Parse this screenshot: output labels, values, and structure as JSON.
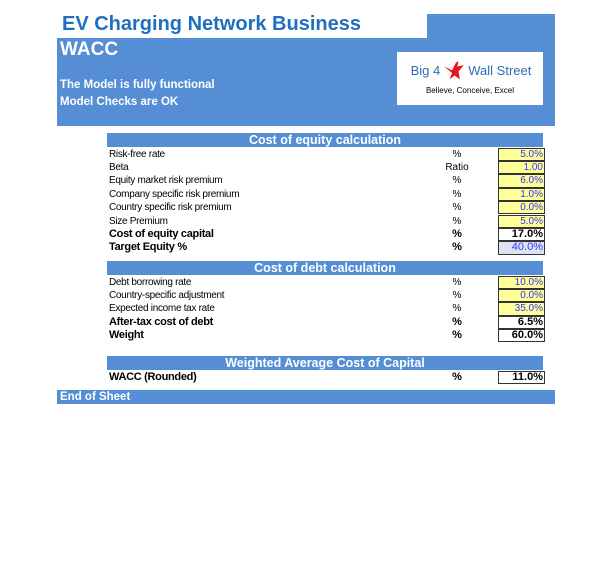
{
  "header": {
    "title": "EV Charging Network Business",
    "sheet": "WACC",
    "status_lines": [
      "The Model is fully functional",
      "Model Checks are OK"
    ],
    "logo": {
      "left": "Big 4",
      "right": "Wall Street",
      "tagline": "Believe, Conceive, Excel"
    }
  },
  "equity": {
    "title": "Cost of equity calculation",
    "rows": [
      {
        "label": "Risk-free rate",
        "unit": "%",
        "value": "5.0%"
      },
      {
        "label": "Beta",
        "unit": "Ratio",
        "value": "1.00"
      },
      {
        "label": "Equity market risk premium",
        "unit": "%",
        "value": "6.0%"
      },
      {
        "label": "Company specific risk premium",
        "unit": "%",
        "value": "1.0%"
      },
      {
        "label": "Country specific risk premium",
        "unit": "%",
        "value": "0.0%"
      },
      {
        "label": "Size Premium",
        "unit": "%",
        "value": "5.0%"
      },
      {
        "label": "Cost of equity capital",
        "unit": "%",
        "value": "17.0%"
      },
      {
        "label": "Target Equity %",
        "unit": "%",
        "value": "40.0%"
      }
    ]
  },
  "debt": {
    "title": "Cost of debt calculation",
    "rows": [
      {
        "label": "Debt borrowing rate",
        "unit": "%",
        "value": "10.0%"
      },
      {
        "label": "Country-specific adjustment",
        "unit": "%",
        "value": "0.0%"
      },
      {
        "label": "Expected income tax rate",
        "unit": "%",
        "value": "35.0%"
      },
      {
        "label": "After-tax cost of debt",
        "unit": "%",
        "value": "6.5%"
      },
      {
        "label": "Weight",
        "unit": "%",
        "value": "60.0%"
      }
    ]
  },
  "wacc": {
    "title": "Weighted Average Cost of Capital",
    "rows": [
      {
        "label": "WACC (Rounded)",
        "unit": "%",
        "value": "11.0%"
      }
    ]
  },
  "footer": {
    "label": "End of Sheet"
  },
  "colors": {
    "band": "#558ed5",
    "input_fill": "#ffff99",
    "input_text": "#3333ff",
    "title": "#1f6fc0"
  }
}
